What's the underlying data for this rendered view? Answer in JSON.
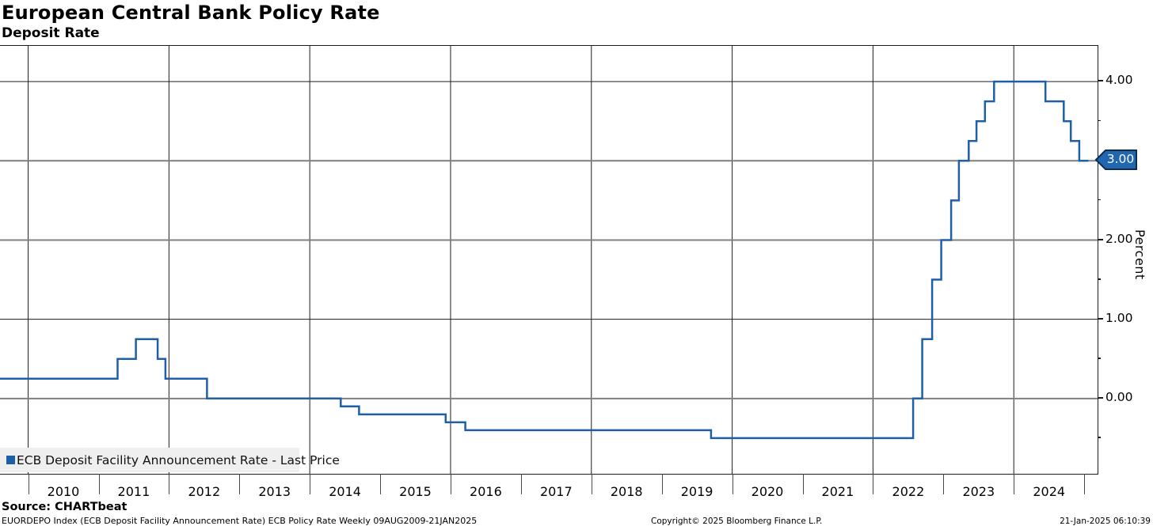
{
  "header": {
    "title": "European Central Bank Policy Rate",
    "subtitle": "Deposit Rate"
  },
  "legend": {
    "label": "ECB Deposit Facility Announcement Rate - Last Price"
  },
  "footer": {
    "source": "Source: CHARTbeat",
    "footnote": "EUORDEPO Index (ECB Deposit Facility Announcement Rate) ECB Policy Rate  Weekly 09AUG2009-21JAN2025",
    "copyright": "Copyright© 2025 Bloomberg Finance L.P.",
    "timestamp": "21-Jan-2025 06:10:39"
  },
  "colors": {
    "line": "#1f5fa8",
    "badge_fill": "#2067b0",
    "badge_border": "#0e2c52",
    "grid_black": "#1c1c1c",
    "grid_gray": "#7f7f7f",
    "tick_gray": "#4a4a4a",
    "legend_bg": "#efefef"
  },
  "chart_data": {
    "type": "line",
    "step": true,
    "title": "European Central Bank Policy Rate",
    "subtitle": "Deposit Rate",
    "ylabel": "Percent",
    "grid": true,
    "legend_position": "bottom-left",
    "x_range": [
      2009.6,
      2025.19
    ],
    "y_view_range": [
      -0.95,
      4.45
    ],
    "x_tick_year_labels": [
      2010,
      2011,
      2012,
      2013,
      2014,
      2015,
      2016,
      2017,
      2018,
      2019,
      2020,
      2021,
      2022,
      2023,
      2024
    ],
    "x_boundary_ticks": [
      2010,
      2011,
      2012,
      2013,
      2014,
      2015,
      2016,
      2017,
      2018,
      2019,
      2020,
      2021,
      2022,
      2023,
      2024,
      2025
    ],
    "vertical_gridline_years": [
      2010,
      2012,
      2014,
      2016,
      2018,
      2020,
      2022,
      2024
    ],
    "y_major_gridlines": [
      0,
      1,
      2,
      3,
      4
    ],
    "emphasized_gridlines": [
      0,
      2,
      3
    ],
    "y_minor_ticks": [
      -0.5,
      0.5,
      1.5,
      2.5,
      3.5
    ],
    "y_tick_labels": [
      {
        "v": 4,
        "label": "4.00"
      },
      {
        "v": 2,
        "label": "2.00"
      },
      {
        "v": 1,
        "label": "1.00"
      },
      {
        "v": 0,
        "label": "0.00"
      }
    ],
    "last_price": {
      "v": 3,
      "label": "3.00"
    },
    "series": [
      {
        "name": "ECB Deposit Facility Announcement Rate - Last Price",
        "color": "#1f5fa8",
        "step_points": [
          [
            2009.6,
            0.25
          ],
          [
            2011.27,
            0.5
          ],
          [
            2011.53,
            0.75
          ],
          [
            2011.84,
            0.5
          ],
          [
            2011.95,
            0.25
          ],
          [
            2012.54,
            0.0
          ],
          [
            2014.44,
            -0.1
          ],
          [
            2014.7,
            -0.2
          ],
          [
            2015.93,
            -0.3
          ],
          [
            2016.21,
            -0.4
          ],
          [
            2019.7,
            -0.5
          ],
          [
            2022.57,
            0.0
          ],
          [
            2022.7,
            0.75
          ],
          [
            2022.84,
            1.5
          ],
          [
            2022.97,
            2.0
          ],
          [
            2023.11,
            2.5
          ],
          [
            2023.22,
            3.0
          ],
          [
            2023.36,
            3.25
          ],
          [
            2023.47,
            3.5
          ],
          [
            2023.59,
            3.75
          ],
          [
            2023.72,
            4.0
          ],
          [
            2024.45,
            3.75
          ],
          [
            2024.71,
            3.5
          ],
          [
            2024.81,
            3.25
          ],
          [
            2024.93,
            3.0
          ],
          [
            2025.06,
            3.0
          ]
        ]
      }
    ]
  }
}
